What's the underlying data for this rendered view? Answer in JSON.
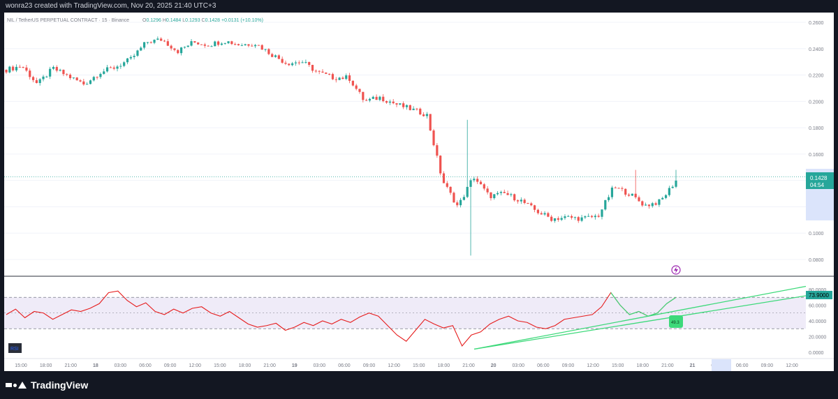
{
  "header": {
    "credit": "wonra23 created with TradingView.com, Nov 20, 2025 21:40 UTC+3"
  },
  "legend": {
    "symbol": "NIL / TetherUS PERPETUAL CONTRACT · 15 · Binance",
    "open_label": "O",
    "open": "0.1296",
    "high_label": "H",
    "high": "0.1484",
    "low_label": "L",
    "low": "0.1293",
    "close_label": "C",
    "close": "0.1428",
    "change": "+0.0131 (+10.10%)"
  },
  "price_tag": {
    "price": "0.1428",
    "countdown": "04:54"
  },
  "rsi": {
    "label": "RSI",
    "value": "73.9000",
    "marker": "49.3"
  },
  "brand": {
    "name": "TradingView"
  },
  "colors": {
    "up": "#26a69a",
    "down": "#ef5350",
    "rsi_line": "#e61c1c",
    "trend": "#3dd97a",
    "band": "#7e57c2",
    "price_tag": "#2962ff"
  },
  "chart_data": {
    "type": "candlestick",
    "price_axis": {
      "ticks": [
        "0.2600",
        "0.2400",
        "0.2200",
        "0.2000",
        "0.1800",
        "0.1600",
        "0.1400",
        "0.1200",
        "0.1000",
        "0.0800"
      ],
      "range": [
        0.07,
        0.27
      ]
    },
    "rsi_axis": {
      "ticks": [
        "80.0000",
        "60.0000",
        "40.0000",
        "20.0000",
        "0.0000"
      ],
      "range": [
        0,
        80
      ],
      "band": [
        30,
        70
      ],
      "midline": 50
    },
    "time_axis": {
      "ticks": [
        "15:00",
        "18:00",
        "21:00",
        "18",
        "03:00",
        "06:00",
        "09:00",
        "12:00",
        "15:00",
        "18:00",
        "21:00",
        "19",
        "03:00",
        "06:00",
        "09:00",
        "12:00",
        "15:00",
        "18:00",
        "21:00",
        "20",
        "03:00",
        "06:00",
        "09:00",
        "12:00",
        "15:00",
        "18:00",
        "21:00",
        "21",
        "01:00",
        "06:00",
        "09:00",
        "12:00"
      ]
    },
    "price_path": [
      [
        0.224,
        0.226
      ],
      [
        0.227,
        0.22
      ],
      [
        0.213,
        0.218
      ],
      [
        0.225,
        0.221
      ],
      [
        0.219,
        0.216
      ],
      [
        0.213,
        0.22
      ],
      [
        0.222,
        0.224
      ],
      [
        0.226,
        0.229
      ],
      [
        0.232,
        0.236
      ],
      [
        0.245,
        0.246
      ],
      [
        0.247,
        0.243
      ],
      [
        0.238,
        0.241
      ],
      [
        0.245,
        0.244
      ],
      [
        0.243,
        0.241
      ],
      [
        0.246,
        0.244
      ],
      [
        0.243,
        0.24
      ],
      [
        0.244,
        0.239
      ],
      [
        0.236,
        0.229
      ],
      [
        0.229,
        0.228
      ],
      [
        0.23,
        0.225
      ],
      [
        0.222,
        0.219
      ],
      [
        0.218,
        0.221
      ],
      [
        0.218,
        0.206
      ],
      [
        0.2,
        0.202
      ],
      [
        0.203,
        0.2
      ],
      [
        0.198,
        0.197
      ],
      [
        0.194,
        0.193
      ],
      [
        0.19,
        0.185
      ],
      [
        0.14,
        0.103
      ],
      [
        0.12,
        0.14
      ],
      [
        0.143,
        0.13
      ],
      [
        0.128,
        0.126
      ],
      [
        0.13,
        0.127
      ],
      [
        0.125,
        0.12
      ],
      [
        0.117,
        0.113
      ],
      [
        0.111,
        0.11
      ],
      [
        0.112,
        0.113
      ],
      [
        0.111,
        0.112
      ],
      [
        0.113,
        0.111
      ],
      [
        0.135,
        0.145
      ],
      [
        0.13,
        0.124
      ],
      [
        0.121,
        0.122
      ],
      [
        0.124,
        0.131
      ],
      [
        0.14,
        0.143
      ]
    ],
    "rsi_path": [
      48,
      55,
      44,
      52,
      50,
      42,
      48,
      54,
      52,
      56,
      62,
      76,
      78,
      66,
      58,
      63,
      52,
      48,
      55,
      50,
      56,
      58,
      50,
      46,
      52,
      44,
      36,
      32,
      34,
      37,
      28,
      32,
      38,
      34,
      40,
      36,
      42,
      38,
      45,
      50,
      46,
      34,
      22,
      14,
      28,
      42,
      36,
      31,
      34,
      8,
      22,
      26,
      36,
      42,
      46,
      40,
      38,
      32,
      30,
      34,
      42,
      44,
      46,
      48,
      58,
      76,
      60,
      48,
      52,
      46,
      50,
      62,
      70
    ]
  }
}
